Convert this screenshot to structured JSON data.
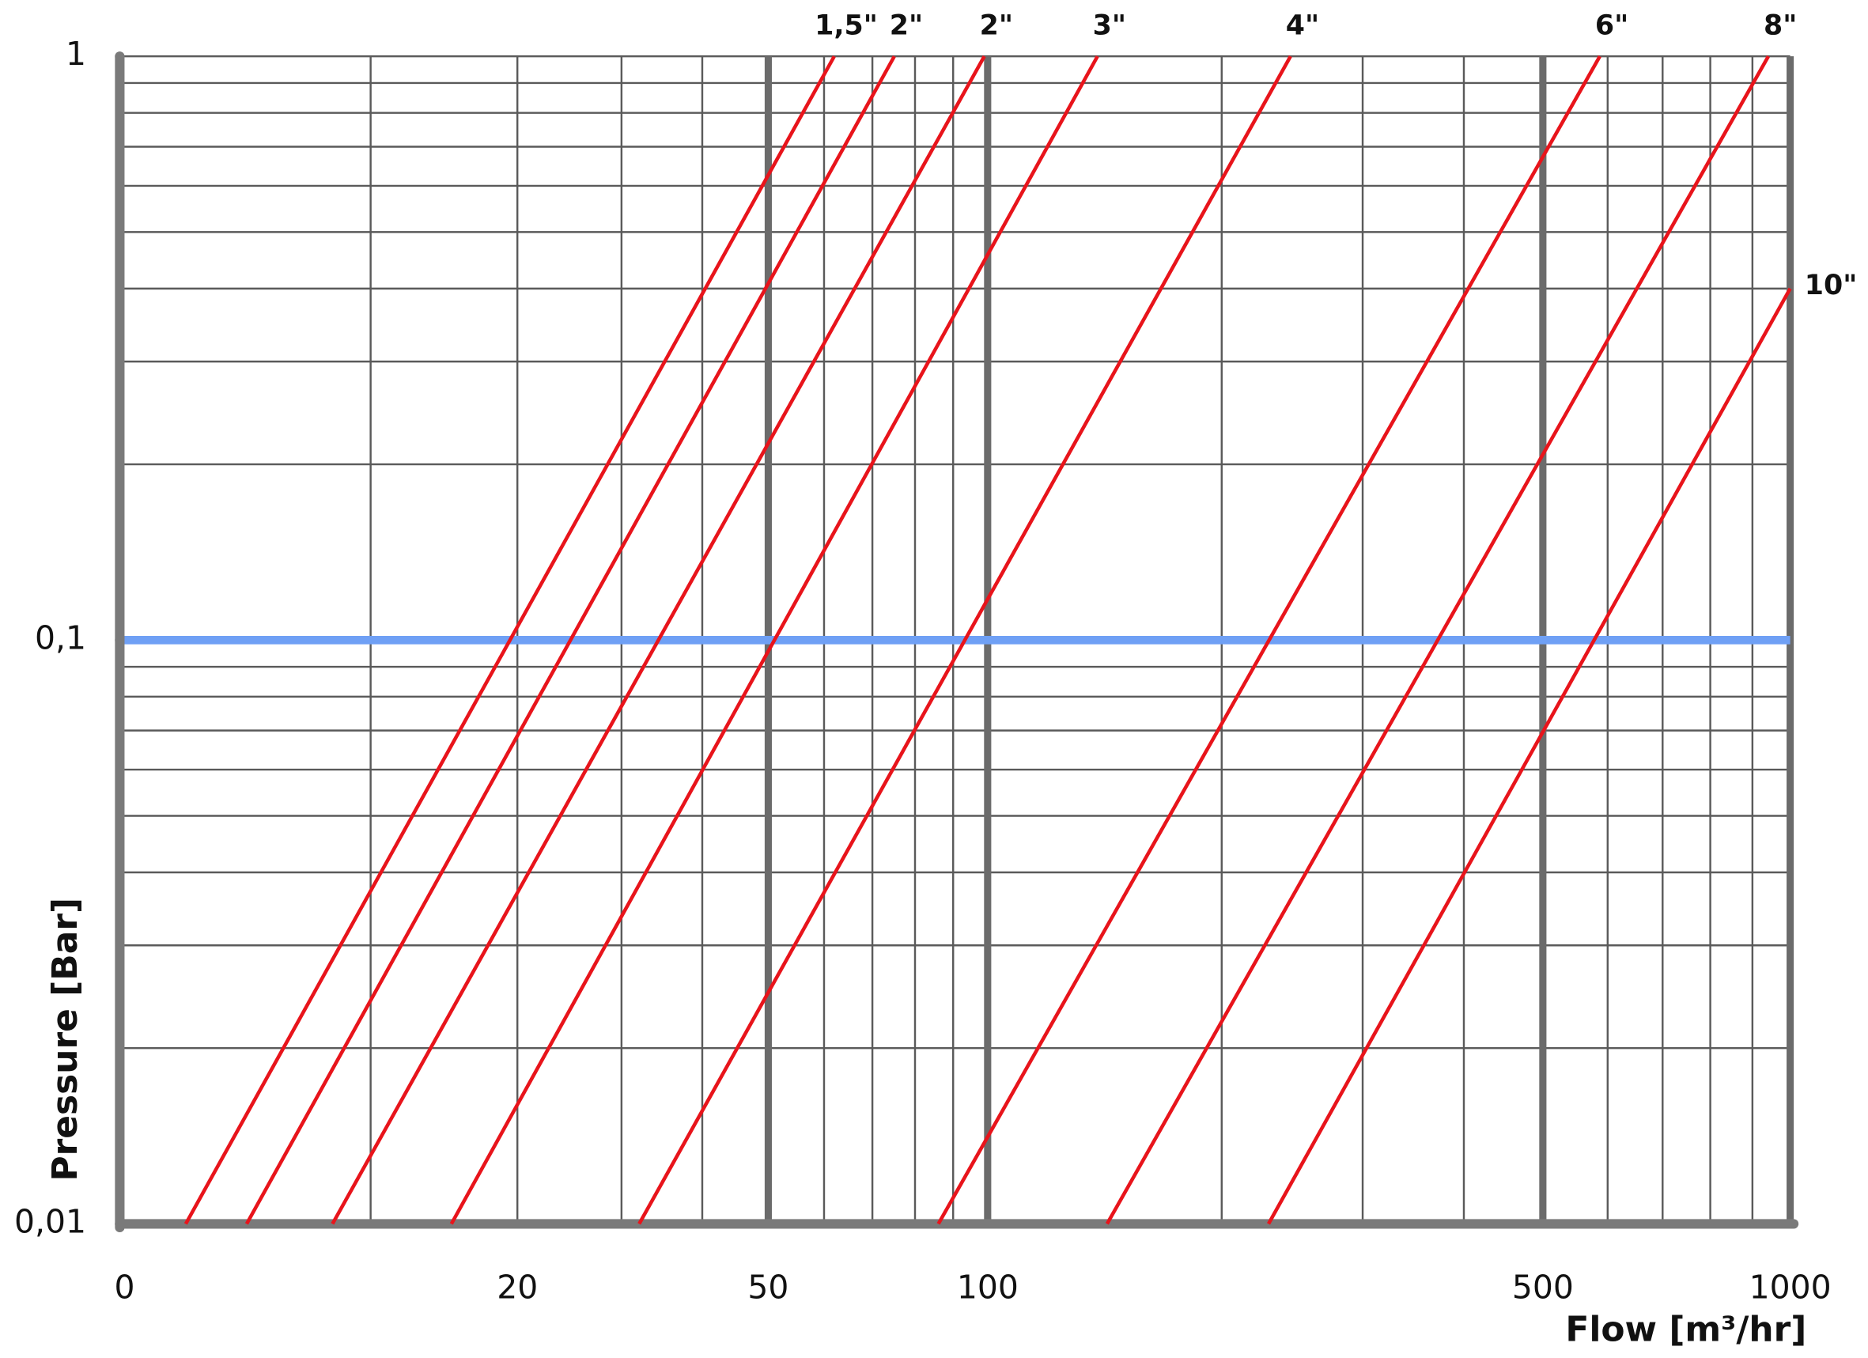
{
  "chart_data": {
    "type": "line",
    "x_label": "Flow [m³/hr]",
    "y_label": "Pressure [Bar]",
    "xscale": "log",
    "yscale": "log",
    "xlim": [
      0,
      1000
    ],
    "ylim": [
      0.01,
      1
    ],
    "xticks": [
      0,
      20,
      50,
      100,
      500,
      1000
    ],
    "yticks": [
      {
        "value": 0.01,
        "label": "0,01"
      },
      {
        "value": 0.1,
        "label": "0,1"
      },
      {
        "value": 1,
        "label": "1"
      }
    ],
    "grid": true,
    "x_grid": [
      10,
      20,
      30,
      40,
      50,
      60,
      70,
      80,
      90,
      100,
      200,
      300,
      400,
      500,
      600,
      700,
      800,
      900,
      1000
    ],
    "x_grid_major": [
      50,
      100,
      500,
      1000
    ],
    "y_grid": [
      0.02,
      0.03,
      0.04,
      0.05,
      0.06,
      0.07,
      0.08,
      0.09,
      0.1,
      0.2,
      0.3,
      0.4,
      0.5,
      0.6,
      0.7,
      0.8,
      0.9,
      1
    ],
    "reference_line": {
      "value": 0.1,
      "color": "#6fa0f5"
    },
    "series": [
      {
        "name": "1,5\"",
        "color": "#e8141b",
        "x": [
          2,
          62
        ],
        "values": [
          0.01,
          1
        ]
      },
      {
        "name": "2\"",
        "color": "#e8141b",
        "x": [
          4.2,
          75
        ],
        "values": [
          0.01,
          1
        ]
      },
      {
        "name": "2\"",
        "color": "#e8141b",
        "x": [
          8,
          99
        ],
        "values": [
          0.01,
          1
        ]
      },
      {
        "name": "3\"",
        "color": "#e8141b",
        "x": [
          15,
          139
        ],
        "values": [
          0.01,
          1
        ]
      },
      {
        "name": "4\"",
        "color": "#e8141b",
        "x": [
          32,
          244
        ],
        "values": [
          0.01,
          1
        ]
      },
      {
        "name": "6\"",
        "color": "#e8141b",
        "x": [
          86,
          587
        ],
        "values": [
          0.01,
          1
        ]
      },
      {
        "name": "8\"",
        "color": "#e8141b",
        "x": [
          143,
          941
        ],
        "values": [
          0.01,
          1
        ]
      },
      {
        "name": "10\"",
        "color": "#e8141b",
        "x": [
          229,
          1000
        ],
        "values": [
          0.01,
          0.4
        ]
      }
    ]
  }
}
